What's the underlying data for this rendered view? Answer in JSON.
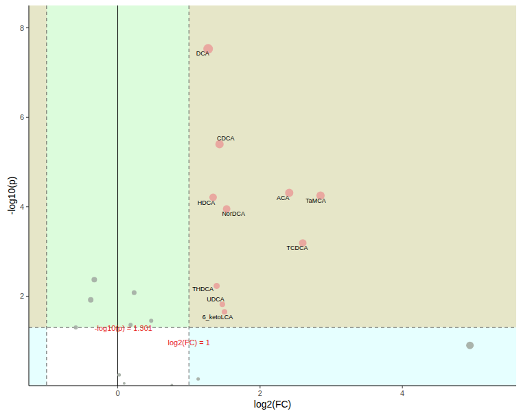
{
  "chart_data": {
    "type": "scatter",
    "x_label": "log2(FC)",
    "y_label": "-log10(p)",
    "xlim": [
      -1.25,
      5.6
    ],
    "ylim": [
      0,
      8.5
    ],
    "xticks": [
      0,
      2,
      4
    ],
    "yticks": [
      2,
      4,
      6,
      8
    ],
    "thresholds": {
      "log2fc": 1,
      "neg_log10_p": 1.301
    },
    "series": [
      {
        "color": "#e9a19b",
        "x": [
          1.27,
          1.43,
          2.41,
          2.85,
          1.34,
          1.53,
          2.6,
          1.39,
          1.47,
          1.5
        ],
        "values": [
          7.53,
          5.4,
          4.31,
          4.25,
          4.21,
          3.95,
          3.19,
          2.23,
          1.82,
          1.65
        ],
        "size": [
          7,
          6,
          6,
          6,
          5.5,
          5.5,
          5.5,
          4.5,
          4,
          4
        ],
        "labels": [
          "DCA",
          "CDCA",
          "ACA",
          "TaMCA",
          "HDCA",
          "NorDCA",
          "TCDCA",
          "THDCA",
          "UDCA",
          "6_ketoLCA"
        ]
      },
      {
        "color": "#a3aca3",
        "x": [
          -0.33,
          -0.38,
          0.23,
          0.47,
          0.18,
          -0.59,
          4.95,
          1.13,
          0.02,
          0.09,
          0.76
        ],
        "values": [
          2.37,
          1.92,
          2.08,
          1.45,
          1.36,
          1.3,
          0.9,
          0.15,
          0.24,
          0.05,
          0.01
        ],
        "size": [
          4,
          4,
          3.5,
          3,
          3,
          3,
          5.5,
          2.5,
          2.5,
          2,
          2
        ]
      }
    ],
    "annotations": [
      {
        "text": "-log10(p) = 1.301",
        "x": 0.08,
        "y": 1.28
      },
      {
        "text": "log2(FC) = 1",
        "x": 1.0,
        "y": 0.97
      }
    ]
  }
}
